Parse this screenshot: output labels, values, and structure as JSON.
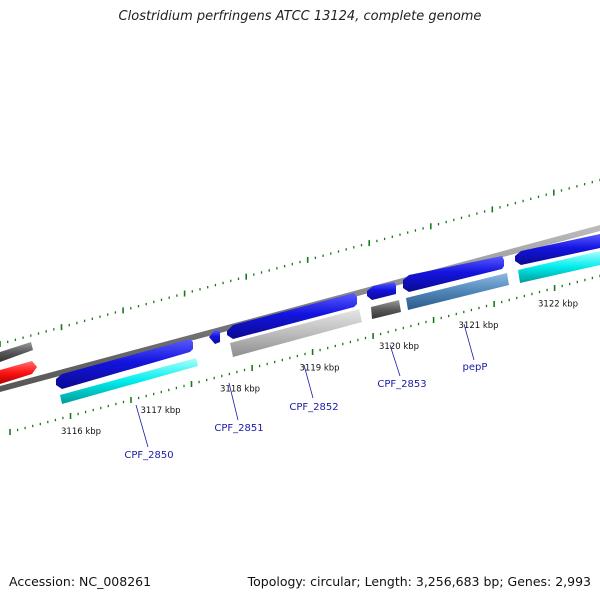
{
  "title": "Clostridium perfringens ATCC 13124, complete genome",
  "footer": {
    "accession": "Accession: NC_008261",
    "stats": "Topology: circular; Length: 3,256,683 bp; Genes: 2,993"
  },
  "ruler": {
    "unit": "kbp",
    "ticks": [
      3116,
      3117,
      3118,
      3119,
      3120,
      3121,
      3122
    ]
  },
  "genes": [
    "CPF_2850",
    "CPF_2851",
    "CPF_2852",
    "CPF_2853",
    "pepP"
  ],
  "colors": {
    "backbone": "#8a8a8a",
    "forward_cds": "#1414e0",
    "forward_gene": "#00e8e8",
    "reverse_cds": "#5a5a5a",
    "reverse_gene": "#c0c0c0",
    "pepP_gene": "#4f86b8",
    "rna": "#ff1414",
    "tick": "#1a7a1a",
    "label": "#1a1aa6"
  }
}
